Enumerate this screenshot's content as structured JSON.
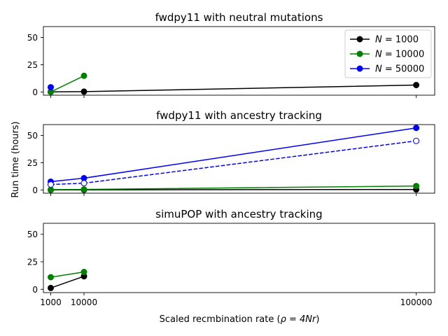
{
  "figure": {
    "ylabel": "Run time (hours)",
    "xlabel": "Scaled recmbination rate (",
    "xlabel_math": "ρ = 4Nr",
    "xlabel_close": ")"
  },
  "legend": {
    "placement": "top-right",
    "entries": [
      {
        "prefix": "N",
        "value": "= 1000",
        "color": "#000000"
      },
      {
        "prefix": "N",
        "value": "= 10000",
        "color": "#008000"
      },
      {
        "prefix": "N",
        "value": "= 50000",
        "color": "#0000ff"
      }
    ]
  },
  "chart_data": [
    {
      "type": "line",
      "title": "fwdpy11 with neutral mutations",
      "xlim": [
        -1000,
        105000
      ],
      "ylim": [
        -3,
        60
      ],
      "yticks": [
        0,
        25,
        50
      ],
      "xticks": [
        1000,
        10000,
        100000
      ],
      "show_xtick_labels": false,
      "series": [
        {
          "name": "N = 1000",
          "color": "#000000",
          "style": "solid",
          "filled": true,
          "x": [
            1000,
            10000,
            100000
          ],
          "y": [
            0,
            0.3,
            6.3
          ]
        },
        {
          "name": "N = 10000",
          "color": "#008000",
          "style": "solid",
          "filled": true,
          "x": [
            1000,
            10000
          ],
          "y": [
            0,
            14.8
          ]
        },
        {
          "name": "N = 50000",
          "color": "#0000ff",
          "style": "solid",
          "filled": true,
          "x": [
            1000
          ],
          "y": [
            4.3
          ]
        }
      ]
    },
    {
      "type": "line",
      "title": "fwdpy11 with ancestry tracking",
      "xlim": [
        -1000,
        105000
      ],
      "ylim": [
        -3,
        60
      ],
      "yticks": [
        0,
        25,
        50
      ],
      "xticks": [
        1000,
        10000,
        100000
      ],
      "show_xtick_labels": false,
      "series": [
        {
          "color": "#000000",
          "style": "solid",
          "filled": true,
          "x": [
            1000,
            10000,
            100000
          ],
          "y": [
            0,
            0.1,
            0.4
          ]
        },
        {
          "color": "#008000",
          "style": "solid",
          "filled": true,
          "x": [
            1000,
            10000,
            100000
          ],
          "y": [
            0.3,
            0.5,
            3.6
          ]
        },
        {
          "color": "#0000ff",
          "style": "solid",
          "filled": true,
          "x": [
            1000,
            10000,
            100000
          ],
          "y": [
            7.6,
            10.8,
            57
          ]
        },
        {
          "color": "#0000ff",
          "style": "dashed",
          "filled": false,
          "x": [
            1000,
            10000,
            100000
          ],
          "y": [
            5.0,
            6.2,
            45
          ]
        }
      ]
    },
    {
      "type": "line",
      "title": "simuPOP with ancestry tracking",
      "xlim": [
        -1000,
        105000
      ],
      "ylim": [
        -3,
        60
      ],
      "yticks": [
        0,
        25,
        50
      ],
      "xticks": [
        1000,
        10000,
        100000
      ],
      "show_xtick_labels": true,
      "series": [
        {
          "color": "#000000",
          "style": "solid",
          "filled": true,
          "x": [
            1000,
            10000
          ],
          "y": [
            1.2,
            11.8
          ]
        },
        {
          "color": "#008000",
          "style": "solid",
          "filled": true,
          "x": [
            1000,
            10000
          ],
          "y": [
            11.0,
            15.8
          ]
        }
      ]
    }
  ]
}
